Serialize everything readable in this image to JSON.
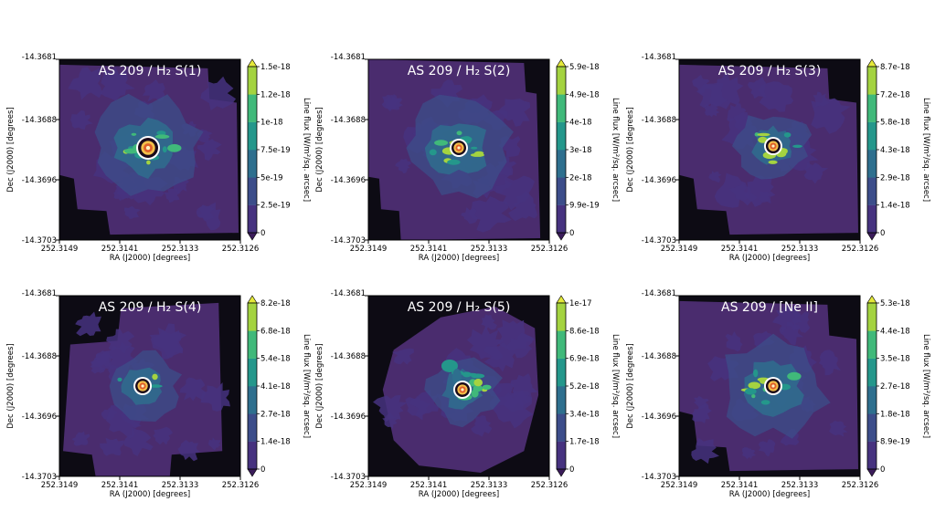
{
  "panels": [
    {
      "title": "AS 209 / H₂ S(1)",
      "cbar_ticks": [
        "1.5e-18",
        "1.2e-18",
        "1e-18",
        "7.5e-19",
        "5e-19",
        "2.5e-19",
        "0"
      ],
      "shape": "A"
    },
    {
      "title": "AS 209 / H₂ S(2)",
      "cbar_ticks": [
        "5.9e-18",
        "4.9e-18",
        "4e-18",
        "3e-18",
        "2e-18",
        "9.9e-19",
        "0"
      ],
      "shape": "B"
    },
    {
      "title": "AS 209 / H₂ S(3)",
      "cbar_ticks": [
        "8.7e-18",
        "7.2e-18",
        "5.8e-18",
        "4.3e-18",
        "2.9e-18",
        "1.4e-18",
        "0"
      ],
      "shape": "A"
    },
    {
      "title": "AS 209 / H₂ S(4)",
      "cbar_ticks": [
        "8.2e-18",
        "6.8e-18",
        "5.4e-18",
        "4.1e-18",
        "2.7e-18",
        "1.4e-18",
        "0"
      ],
      "shape": "C"
    },
    {
      "title": "AS 209 / H₂ S(5)",
      "cbar_ticks": [
        "1e-17",
        "8.6e-18",
        "6.9e-18",
        "5.2e-18",
        "3.4e-18",
        "1.7e-18",
        "0"
      ],
      "shape": "D"
    },
    {
      "title": "AS 209 / [Ne II]",
      "cbar_ticks": [
        "5.3e-18",
        "4.4e-18",
        "3.5e-18",
        "2.7e-18",
        "1.8e-18",
        "8.9e-19",
        "0"
      ],
      "shape": "A"
    }
  ],
  "x_ticks": [
    "252.3149",
    "252.3141",
    "252.3133",
    "252.3126"
  ],
  "y_ticks": [
    "-14.3681",
    "-14.3688",
    "-14.3696",
    "-14.3703"
  ],
  "xlabel": "RA (J2000) [degrees]",
  "ylabel": "Dec (J2000) [degrees]",
  "cbar_label": "Line flux [W/m²/sq. arcsec]",
  "colors": {
    "background": "#0d0b14",
    "levels": [
      "#46327f",
      "#3c4d8a",
      "#2e6f8e",
      "#24978b",
      "#40b97a",
      "#a4d340"
    ],
    "top": "#e4e93a",
    "star_outer": "#f3c04a",
    "star_inner": "#e0602b"
  },
  "chart_data": {
    "type": "heatmap",
    "panel_count": 6,
    "layout": "2 rows x 3 columns",
    "x": [
      "252.3149",
      "252.3141",
      "252.3133",
      "252.3126"
    ],
    "y": [
      "-14.3681",
      "-14.3688",
      "-14.3696",
      "-14.3703"
    ],
    "colormap": "viridis (filled contours)",
    "colorbar_extend": "both"
  }
}
